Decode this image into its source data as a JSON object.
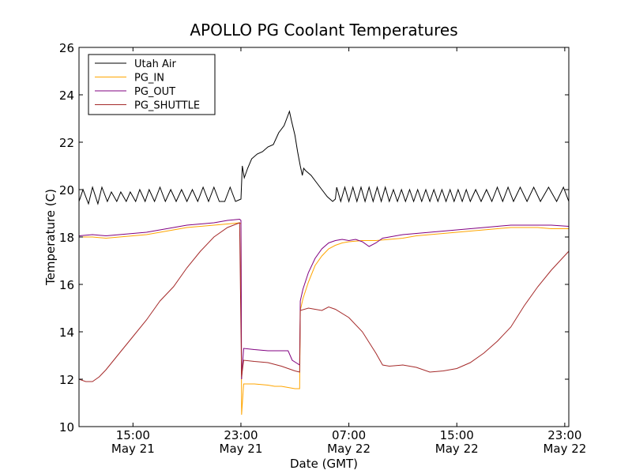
{
  "chart_data": {
    "type": "line",
    "title": "APOLLO PG Coolant Temperatures",
    "xlabel": "Date (GMT)",
    "ylabel": "Temperature (C)",
    "xlim": [
      11.0,
      47.3
    ],
    "ylim": [
      10,
      26
    ],
    "y_ticks": [
      10,
      12,
      14,
      16,
      18,
      20,
      22,
      24,
      26
    ],
    "x_ticks": [
      {
        "value": 15,
        "line1": "15:00",
        "line2": "May 21"
      },
      {
        "value": 23,
        "line1": "23:00",
        "line2": "May 21"
      },
      {
        "value": 31,
        "line1": "07:00",
        "line2": "May 22"
      },
      {
        "value": 39,
        "line1": "15:00",
        "line2": "May 22"
      },
      {
        "value": 47,
        "line1": "23:00",
        "line2": "May 22"
      }
    ],
    "legend_position": "top-left",
    "series": [
      {
        "name": "Utah Air",
        "color": "#000000",
        "points": [
          [
            11.0,
            19.5
          ],
          [
            11.3,
            20.0
          ],
          [
            11.7,
            19.4
          ],
          [
            12.0,
            20.1
          ],
          [
            12.4,
            19.4
          ],
          [
            12.7,
            20.1
          ],
          [
            13.1,
            19.5
          ],
          [
            13.4,
            19.9
          ],
          [
            13.8,
            19.5
          ],
          [
            14.1,
            19.9
          ],
          [
            14.5,
            19.5
          ],
          [
            14.8,
            19.9
          ],
          [
            15.2,
            19.5
          ],
          [
            15.5,
            20.0
          ],
          [
            15.9,
            19.5
          ],
          [
            16.2,
            20.0
          ],
          [
            16.6,
            19.5
          ],
          [
            17.0,
            20.1
          ],
          [
            17.4,
            19.5
          ],
          [
            17.8,
            20.0
          ],
          [
            18.2,
            19.5
          ],
          [
            18.6,
            20.0
          ],
          [
            19.0,
            19.5
          ],
          [
            19.4,
            20.0
          ],
          [
            19.8,
            19.5
          ],
          [
            20.2,
            20.1
          ],
          [
            20.6,
            19.5
          ],
          [
            21.0,
            20.1
          ],
          [
            21.4,
            19.5
          ],
          [
            21.8,
            19.5
          ],
          [
            22.2,
            20.1
          ],
          [
            22.6,
            19.5
          ],
          [
            23.0,
            19.6
          ],
          [
            23.1,
            21.0
          ],
          [
            23.25,
            20.5
          ],
          [
            23.5,
            20.9
          ],
          [
            23.8,
            21.3
          ],
          [
            24.2,
            21.5
          ],
          [
            24.6,
            21.6
          ],
          [
            25.0,
            21.8
          ],
          [
            25.4,
            21.9
          ],
          [
            25.8,
            22.4
          ],
          [
            26.2,
            22.7
          ],
          [
            26.4,
            23.0
          ],
          [
            26.6,
            23.3
          ],
          [
            26.75,
            22.9
          ],
          [
            27.0,
            22.3
          ],
          [
            27.2,
            21.6
          ],
          [
            27.4,
            21.0
          ],
          [
            27.55,
            20.6
          ],
          [
            27.65,
            20.9
          ],
          [
            27.8,
            20.8
          ],
          [
            28.2,
            20.6
          ],
          [
            28.6,
            20.3
          ],
          [
            29.0,
            20.0
          ],
          [
            29.4,
            19.7
          ],
          [
            29.8,
            19.5
          ],
          [
            30.0,
            19.6
          ],
          [
            30.1,
            20.1
          ],
          [
            30.4,
            19.5
          ],
          [
            30.7,
            20.1
          ],
          [
            31.0,
            19.5
          ],
          [
            31.3,
            20.1
          ],
          [
            31.6,
            19.5
          ],
          [
            31.9,
            20.1
          ],
          [
            32.2,
            19.5
          ],
          [
            32.5,
            20.1
          ],
          [
            32.8,
            19.5
          ],
          [
            33.1,
            20.1
          ],
          [
            33.4,
            19.5
          ],
          [
            33.7,
            20.1
          ],
          [
            34.0,
            19.5
          ],
          [
            34.3,
            20.0
          ],
          [
            34.6,
            19.5
          ],
          [
            34.9,
            20.0
          ],
          [
            35.2,
            19.5
          ],
          [
            35.5,
            20.0
          ],
          [
            35.8,
            19.5
          ],
          [
            36.1,
            20.0
          ],
          [
            36.4,
            19.5
          ],
          [
            36.7,
            20.0
          ],
          [
            37.0,
            19.5
          ],
          [
            37.3,
            20.0
          ],
          [
            37.6,
            19.5
          ],
          [
            37.9,
            20.0
          ],
          [
            38.2,
            19.5
          ],
          [
            38.5,
            20.0
          ],
          [
            38.8,
            19.5
          ],
          [
            39.1,
            20.0
          ],
          [
            39.4,
            19.5
          ],
          [
            39.7,
            20.0
          ],
          [
            40.0,
            19.5
          ],
          [
            40.4,
            20.0
          ],
          [
            40.8,
            19.5
          ],
          [
            41.2,
            20.0
          ],
          [
            41.6,
            19.5
          ],
          [
            42.0,
            20.1
          ],
          [
            42.4,
            19.5
          ],
          [
            42.8,
            20.1
          ],
          [
            43.2,
            19.5
          ],
          [
            43.7,
            20.1
          ],
          [
            44.2,
            19.5
          ],
          [
            44.7,
            20.1
          ],
          [
            45.2,
            19.5
          ],
          [
            45.8,
            20.1
          ],
          [
            46.4,
            19.5
          ],
          [
            46.9,
            20.1
          ],
          [
            47.3,
            19.5
          ]
        ]
      },
      {
        "name": "PG_IN",
        "color": "#ffa500",
        "points": [
          [
            11.0,
            18.0
          ],
          [
            12.0,
            18.0
          ],
          [
            13.0,
            17.95
          ],
          [
            14.0,
            18.0
          ],
          [
            15.0,
            18.05
          ],
          [
            16.0,
            18.1
          ],
          [
            17.0,
            18.2
          ],
          [
            18.0,
            18.3
          ],
          [
            19.0,
            18.4
          ],
          [
            20.0,
            18.45
          ],
          [
            21.0,
            18.5
          ],
          [
            22.0,
            18.55
          ],
          [
            22.9,
            18.6
          ],
          [
            23.0,
            18.55
          ],
          [
            23.05,
            10.5
          ],
          [
            23.2,
            11.8
          ],
          [
            24.0,
            11.8
          ],
          [
            25.0,
            11.75
          ],
          [
            25.5,
            11.7
          ],
          [
            26.0,
            11.7
          ],
          [
            27.0,
            11.6
          ],
          [
            27.35,
            11.6
          ],
          [
            27.4,
            14.9
          ],
          [
            27.6,
            15.4
          ],
          [
            28.0,
            16.1
          ],
          [
            28.5,
            16.8
          ],
          [
            29.0,
            17.2
          ],
          [
            29.5,
            17.5
          ],
          [
            30.0,
            17.65
          ],
          [
            30.5,
            17.75
          ],
          [
            31.0,
            17.8
          ],
          [
            32.0,
            17.85
          ],
          [
            33.0,
            17.85
          ],
          [
            34.0,
            17.9
          ],
          [
            35.0,
            17.95
          ],
          [
            36.0,
            18.05
          ],
          [
            37.0,
            18.1
          ],
          [
            38.0,
            18.15
          ],
          [
            39.0,
            18.2
          ],
          [
            40.0,
            18.25
          ],
          [
            41.0,
            18.3
          ],
          [
            42.0,
            18.35
          ],
          [
            43.0,
            18.4
          ],
          [
            44.0,
            18.4
          ],
          [
            45.0,
            18.4
          ],
          [
            46.0,
            18.35
          ],
          [
            47.3,
            18.35
          ]
        ]
      },
      {
        "name": "PG_OUT",
        "color": "#800080",
        "points": [
          [
            11.0,
            18.05
          ],
          [
            12.0,
            18.1
          ],
          [
            13.0,
            18.05
          ],
          [
            14.0,
            18.1
          ],
          [
            15.0,
            18.15
          ],
          [
            16.0,
            18.2
          ],
          [
            17.0,
            18.3
          ],
          [
            18.0,
            18.4
          ],
          [
            19.0,
            18.5
          ],
          [
            20.0,
            18.55
          ],
          [
            21.0,
            18.6
          ],
          [
            22.0,
            18.7
          ],
          [
            22.9,
            18.75
          ],
          [
            23.0,
            18.7
          ],
          [
            23.05,
            12.0
          ],
          [
            23.2,
            13.3
          ],
          [
            24.0,
            13.25
          ],
          [
            25.0,
            13.2
          ],
          [
            26.0,
            13.2
          ],
          [
            26.5,
            13.2
          ],
          [
            26.8,
            12.8
          ],
          [
            27.35,
            12.6
          ],
          [
            27.4,
            15.3
          ],
          [
            27.6,
            15.8
          ],
          [
            28.0,
            16.5
          ],
          [
            28.5,
            17.1
          ],
          [
            29.0,
            17.5
          ],
          [
            29.5,
            17.75
          ],
          [
            30.0,
            17.85
          ],
          [
            30.5,
            17.9
          ],
          [
            31.0,
            17.85
          ],
          [
            31.5,
            17.9
          ],
          [
            32.0,
            17.8
          ],
          [
            32.5,
            17.6
          ],
          [
            33.0,
            17.75
          ],
          [
            33.5,
            17.95
          ],
          [
            34.0,
            18.0
          ],
          [
            35.0,
            18.1
          ],
          [
            36.0,
            18.15
          ],
          [
            37.0,
            18.2
          ],
          [
            38.0,
            18.25
          ],
          [
            39.0,
            18.3
          ],
          [
            40.0,
            18.35
          ],
          [
            41.0,
            18.4
          ],
          [
            42.0,
            18.45
          ],
          [
            43.0,
            18.5
          ],
          [
            44.0,
            18.5
          ],
          [
            45.0,
            18.5
          ],
          [
            46.0,
            18.5
          ],
          [
            47.3,
            18.45
          ]
        ]
      },
      {
        "name": "PG_SHUTTLE",
        "color": "#a52a2a",
        "points": [
          [
            11.0,
            12.0
          ],
          [
            11.5,
            11.9
          ],
          [
            12.0,
            11.9
          ],
          [
            12.5,
            12.1
          ],
          [
            13.0,
            12.4
          ],
          [
            14.0,
            13.1
          ],
          [
            15.0,
            13.8
          ],
          [
            16.0,
            14.5
          ],
          [
            17.0,
            15.3
          ],
          [
            18.0,
            15.9
          ],
          [
            19.0,
            16.7
          ],
          [
            20.0,
            17.4
          ],
          [
            21.0,
            18.0
          ],
          [
            22.0,
            18.4
          ],
          [
            22.9,
            18.6
          ],
          [
            23.05,
            12.1
          ],
          [
            23.2,
            12.8
          ],
          [
            24.0,
            12.75
          ],
          [
            25.0,
            12.7
          ],
          [
            26.0,
            12.55
          ],
          [
            26.5,
            12.45
          ],
          [
            27.0,
            12.35
          ],
          [
            27.35,
            12.3
          ],
          [
            27.4,
            14.9
          ],
          [
            28.0,
            15.0
          ],
          [
            29.0,
            14.9
          ],
          [
            29.5,
            15.05
          ],
          [
            30.0,
            14.95
          ],
          [
            31.0,
            14.6
          ],
          [
            32.0,
            14.0
          ],
          [
            33.0,
            13.1
          ],
          [
            33.5,
            12.6
          ],
          [
            34.0,
            12.55
          ],
          [
            35.0,
            12.6
          ],
          [
            36.0,
            12.5
          ],
          [
            37.0,
            12.3
          ],
          [
            38.0,
            12.35
          ],
          [
            39.0,
            12.45
          ],
          [
            40.0,
            12.7
          ],
          [
            41.0,
            13.1
          ],
          [
            42.0,
            13.6
          ],
          [
            43.0,
            14.2
          ],
          [
            44.0,
            15.1
          ],
          [
            45.0,
            15.9
          ],
          [
            46.0,
            16.6
          ],
          [
            47.3,
            17.4
          ]
        ]
      }
    ]
  }
}
